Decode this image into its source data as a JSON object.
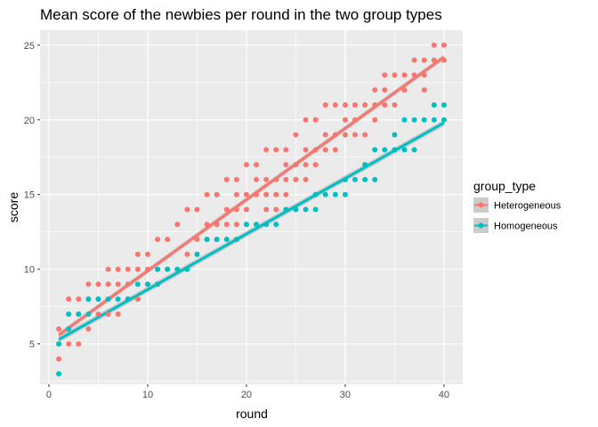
{
  "chart_data": {
    "type": "scatter",
    "title": "Mean score of the newbies per round in the two group types",
    "xlabel": "round",
    "ylabel": "score",
    "xlim": [
      -0.9,
      41.9
    ],
    "ylim": [
      2.3,
      26.0
    ],
    "x_ticks": [
      0,
      10,
      20,
      30,
      40
    ],
    "y_ticks": [
      5,
      10,
      15,
      20,
      25
    ],
    "grid": true,
    "legend_position": "right",
    "legend_title": "group_type",
    "series": [
      {
        "name": "Heterogeneous",
        "color": "#F8766D",
        "fit": {
          "x": [
            1,
            40
          ],
          "y": [
            5.6,
            24.2
          ]
        },
        "points": [
          [
            1,
            4
          ],
          [
            1,
            5
          ],
          [
            1,
            6
          ],
          [
            2,
            5
          ],
          [
            2,
            6
          ],
          [
            2,
            8
          ],
          [
            3,
            5
          ],
          [
            3,
            7
          ],
          [
            3,
            8
          ],
          [
            4,
            6
          ],
          [
            4,
            8
          ],
          [
            4,
            9
          ],
          [
            5,
            7
          ],
          [
            5,
            8
          ],
          [
            5,
            9
          ],
          [
            6,
            7
          ],
          [
            6,
            9
          ],
          [
            6,
            10
          ],
          [
            7,
            7
          ],
          [
            7,
            9
          ],
          [
            7,
            10
          ],
          [
            8,
            8
          ],
          [
            8,
            9
          ],
          [
            8,
            10
          ],
          [
            9,
            8
          ],
          [
            9,
            10
          ],
          [
            9,
            11
          ],
          [
            10,
            9
          ],
          [
            10,
            10
          ],
          [
            10,
            11
          ],
          [
            11,
            9
          ],
          [
            11,
            10
          ],
          [
            11,
            12
          ],
          [
            12,
            10
          ],
          [
            12,
            12
          ],
          [
            13,
            10
          ],
          [
            13,
            13
          ],
          [
            14,
            11
          ],
          [
            14,
            14
          ],
          [
            15,
            11
          ],
          [
            15,
            12
          ],
          [
            15,
            14
          ],
          [
            16,
            12
          ],
          [
            16,
            13
          ],
          [
            16,
            15
          ],
          [
            17,
            12
          ],
          [
            17,
            13
          ],
          [
            17,
            15
          ],
          [
            18,
            13
          ],
          [
            18,
            14
          ],
          [
            18,
            16
          ],
          [
            19,
            13
          ],
          [
            19,
            14
          ],
          [
            19,
            15
          ],
          [
            19,
            16
          ],
          [
            20,
            13
          ],
          [
            20,
            14
          ],
          [
            20,
            15
          ],
          [
            20,
            17
          ],
          [
            21,
            13
          ],
          [
            21,
            15
          ],
          [
            21,
            16
          ],
          [
            21,
            17
          ],
          [
            22,
            14
          ],
          [
            22,
            15
          ],
          [
            22,
            16
          ],
          [
            22,
            18
          ],
          [
            23,
            14
          ],
          [
            23,
            15
          ],
          [
            23,
            16
          ],
          [
            23,
            18
          ],
          [
            24,
            15
          ],
          [
            24,
            16
          ],
          [
            24,
            17
          ],
          [
            24,
            18
          ],
          [
            25,
            16
          ],
          [
            25,
            17
          ],
          [
            25,
            19
          ],
          [
            26,
            16
          ],
          [
            26,
            17
          ],
          [
            26,
            18
          ],
          [
            26,
            20
          ],
          [
            27,
            17
          ],
          [
            27,
            18
          ],
          [
            27,
            20
          ],
          [
            28,
            18
          ],
          [
            28,
            19
          ],
          [
            28,
            21
          ],
          [
            29,
            18
          ],
          [
            29,
            19
          ],
          [
            29,
            21
          ],
          [
            30,
            19
          ],
          [
            30,
            20
          ],
          [
            30,
            21
          ],
          [
            31,
            19
          ],
          [
            31,
            20
          ],
          [
            31,
            21
          ],
          [
            32,
            19
          ],
          [
            32,
            21
          ],
          [
            33,
            20
          ],
          [
            33,
            21
          ],
          [
            33,
            22
          ],
          [
            34,
            21
          ],
          [
            34,
            22
          ],
          [
            34,
            23
          ],
          [
            35,
            21
          ],
          [
            35,
            23
          ],
          [
            36,
            22
          ],
          [
            36,
            23
          ],
          [
            37,
            23
          ],
          [
            37,
            24
          ],
          [
            38,
            22
          ],
          [
            38,
            23
          ],
          [
            38,
            24
          ],
          [
            39,
            24
          ],
          [
            39,
            25
          ],
          [
            40,
            24
          ],
          [
            40,
            25
          ]
        ]
      },
      {
        "name": "Homogeneous",
        "color": "#00BFC4",
        "fit": {
          "x": [
            1,
            40
          ],
          "y": [
            5.3,
            19.8
          ]
        },
        "points": [
          [
            1,
            3
          ],
          [
            1,
            5
          ],
          [
            2,
            6
          ],
          [
            2,
            7
          ],
          [
            3,
            7
          ],
          [
            4,
            7
          ],
          [
            4,
            8
          ],
          [
            5,
            8
          ],
          [
            6,
            8
          ],
          [
            7,
            8
          ],
          [
            8,
            8
          ],
          [
            9,
            9
          ],
          [
            10,
            9
          ],
          [
            11,
            9
          ],
          [
            11,
            10
          ],
          [
            12,
            10
          ],
          [
            13,
            10
          ],
          [
            14,
            10
          ],
          [
            15,
            11
          ],
          [
            16,
            12
          ],
          [
            17,
            12
          ],
          [
            18,
            12
          ],
          [
            19,
            12
          ],
          [
            20,
            13
          ],
          [
            21,
            13
          ],
          [
            22,
            13
          ],
          [
            23,
            13
          ],
          [
            24,
            14
          ],
          [
            25,
            14
          ],
          [
            26,
            14
          ],
          [
            27,
            14
          ],
          [
            27,
            15
          ],
          [
            28,
            15
          ],
          [
            29,
            15
          ],
          [
            30,
            15
          ],
          [
            30,
            16
          ],
          [
            31,
            16
          ],
          [
            32,
            16
          ],
          [
            32,
            17
          ],
          [
            33,
            16
          ],
          [
            33,
            18
          ],
          [
            34,
            18
          ],
          [
            35,
            18
          ],
          [
            35,
            19
          ],
          [
            36,
            18
          ],
          [
            36,
            20
          ],
          [
            37,
            18
          ],
          [
            37,
            20
          ],
          [
            38,
            20
          ],
          [
            39,
            20
          ],
          [
            39,
            21
          ],
          [
            40,
            20
          ],
          [
            40,
            21
          ]
        ]
      }
    ]
  }
}
